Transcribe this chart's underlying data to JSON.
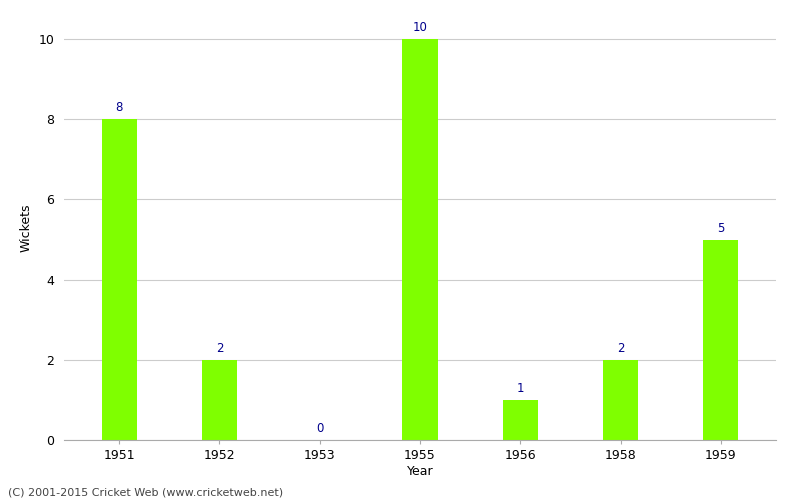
{
  "years": [
    "1951",
    "1952",
    "1953",
    "1955",
    "1956",
    "1958",
    "1959"
  ],
  "wickets": [
    8,
    2,
    0,
    10,
    1,
    2,
    5
  ],
  "bar_color": "#7FFF00",
  "bar_edge_color": "#7FFF00",
  "label_color": "#00008B",
  "xlabel": "Year",
  "ylabel": "Wickets",
  "ylim_max": 10.6,
  "yticks": [
    0,
    2,
    4,
    6,
    8,
    10
  ],
  "grid_color": "#cccccc",
  "background_color": "#ffffff",
  "footer_text": "(C) 2001-2015 Cricket Web (www.cricketweb.net)",
  "label_fontsize": 8.5,
  "axis_label_fontsize": 9,
  "tick_fontsize": 9,
  "footer_fontsize": 8,
  "bar_width": 0.35
}
